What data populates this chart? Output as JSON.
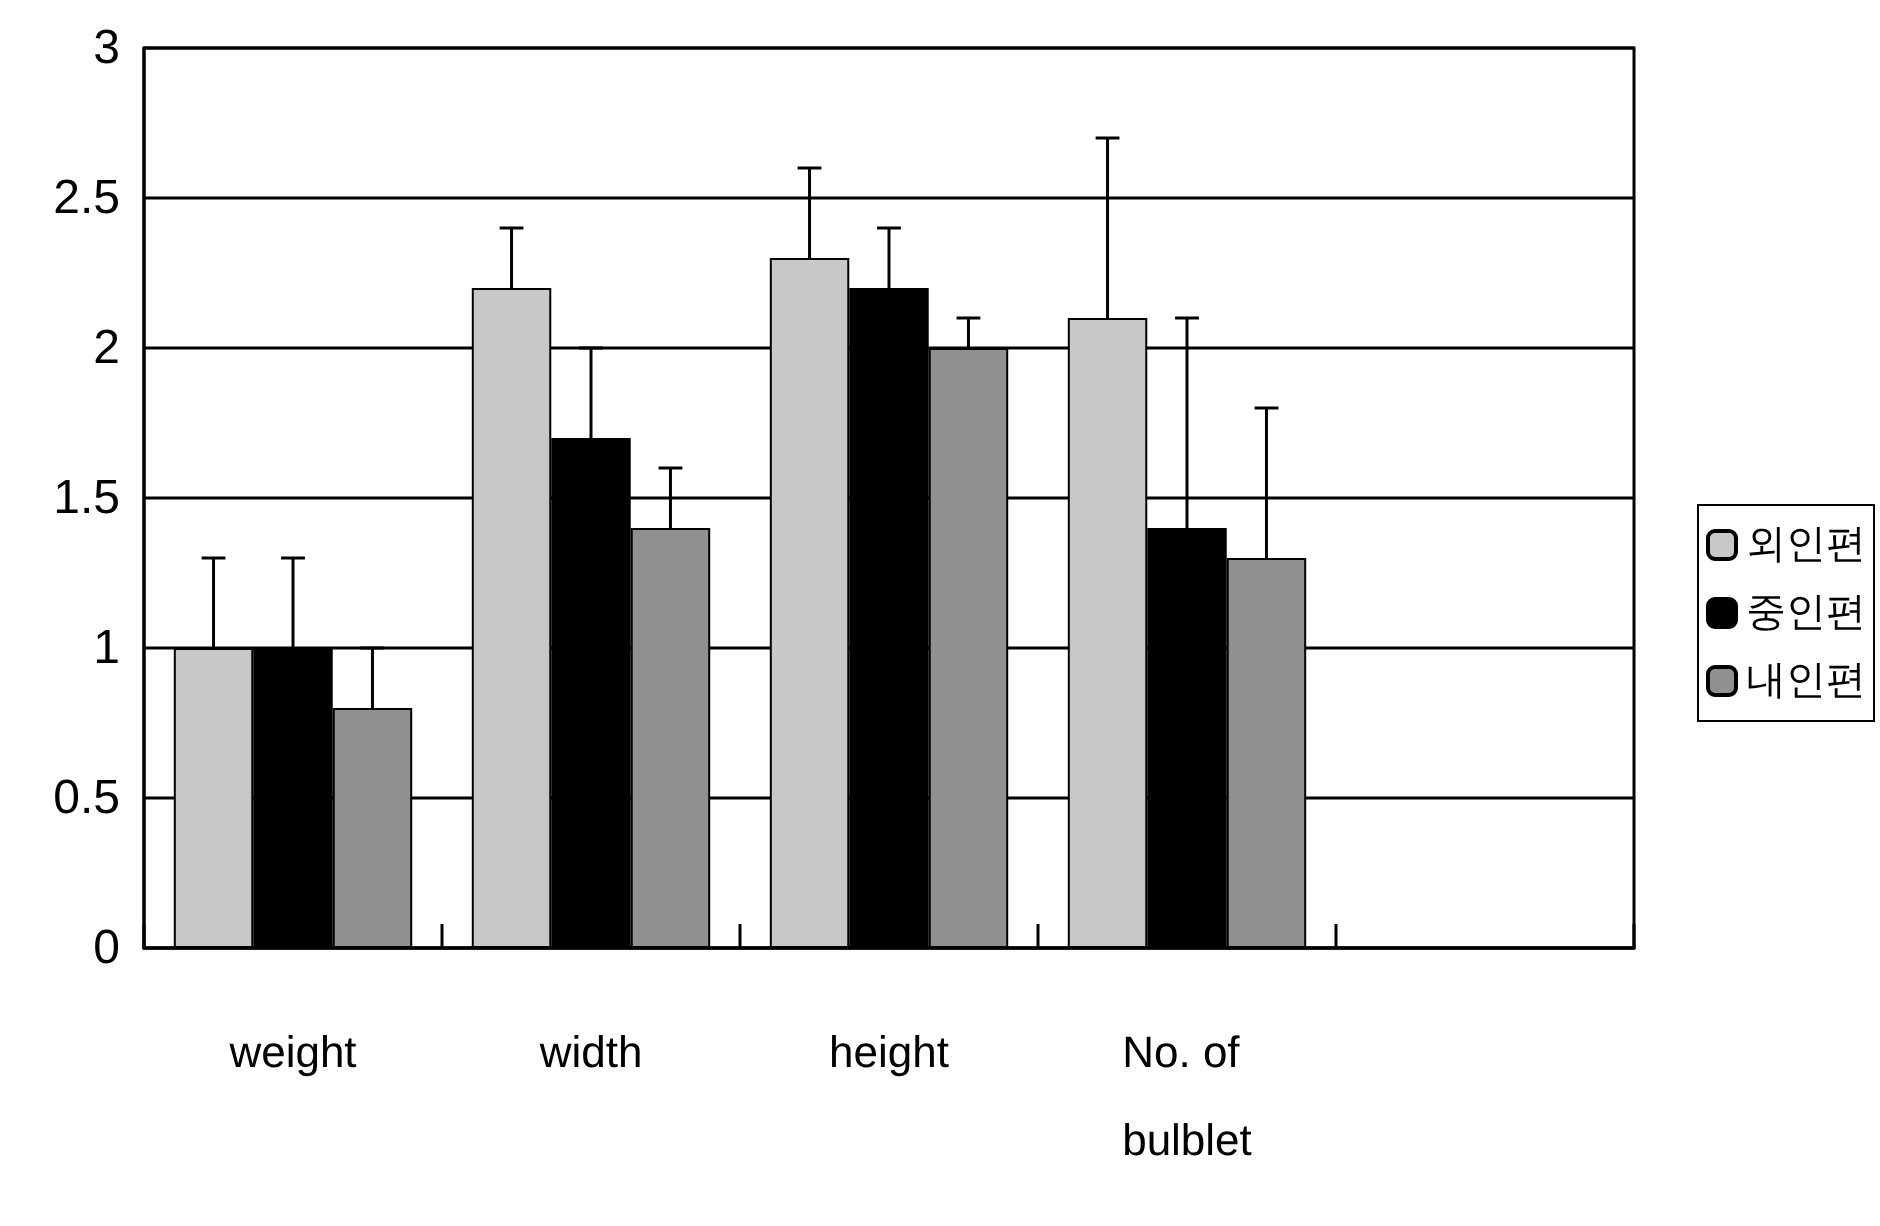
{
  "chart_data": {
    "type": "bar",
    "categories": [
      "weight",
      "width",
      "height",
      "No. of bulblet",
      null
    ],
    "series": [
      {
        "name": "외인편",
        "color": "#c8c8c8",
        "values": [
          1.0,
          2.2,
          2.3,
          2.1,
          null
        ],
        "errors": [
          [
            1.0,
            1.3
          ],
          [
            2.2,
            2.4
          ],
          [
            2.3,
            2.6
          ],
          [
            2.1,
            2.7
          ],
          null
        ]
      },
      {
        "name": "중인편",
        "color": "#000000",
        "values": [
          1.0,
          1.7,
          2.2,
          1.4,
          null
        ],
        "errors": [
          [
            1.0,
            1.3
          ],
          [
            1.7,
            2.0
          ],
          [
            2.2,
            2.4
          ],
          [
            1.4,
            2.1
          ],
          null
        ]
      },
      {
        "name": "내인편",
        "color": "#909090",
        "values": [
          0.8,
          1.4,
          2.0,
          1.3,
          null
        ],
        "errors": [
          [
            0.8,
            1.0
          ],
          [
            1.4,
            1.6
          ],
          [
            2.0,
            2.1
          ],
          [
            1.3,
            1.8
          ],
          null
        ]
      }
    ],
    "ylim": [
      0,
      3
    ],
    "yticks": [
      0,
      0.5,
      1,
      1.5,
      2,
      2.5,
      3
    ],
    "grid": "y",
    "legend": "right"
  }
}
